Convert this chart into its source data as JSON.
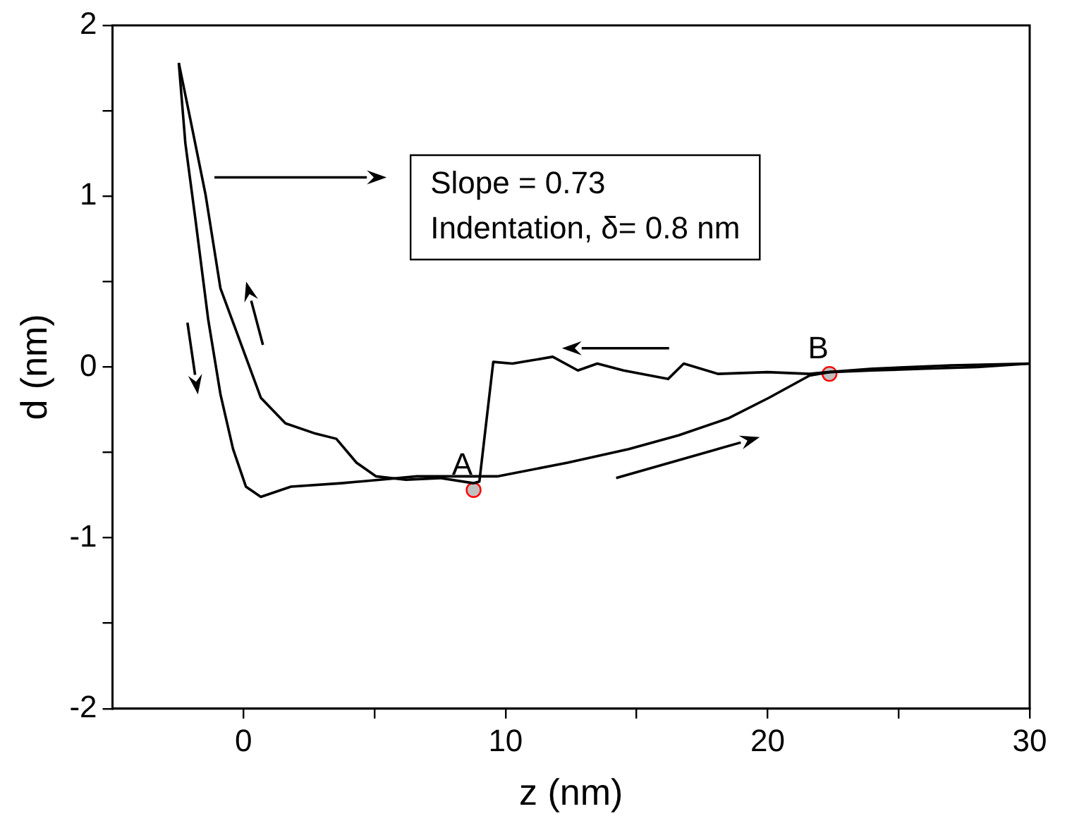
{
  "chart_data": {
    "type": "line",
    "xlabel": "z (nm)",
    "ylabel": "d (nm)",
    "xlim": [
      -5,
      30
    ],
    "xticks": [
      0,
      {
        "value": 5,
        "label": null
      },
      10,
      {
        "value": 15,
        "label": null
      },
      20,
      {
        "value": 25,
        "label": null
      },
      30
    ],
    "ylim": [
      -2,
      2
    ],
    "yticks": [
      -2,
      {
        "value": -1.5,
        "label": null
      },
      -1,
      {
        "value": -0.5,
        "label": null
      },
      0,
      {
        "value": 0.5,
        "label": null
      },
      1,
      {
        "value": 1.5,
        "label": null
      },
      2
    ],
    "grid": false,
    "legend": false,
    "marker": "none",
    "line_style": "solid",
    "series": [
      {
        "color": "#000000",
        "x": [
          30,
          27,
          24,
          22.3,
          21.6,
          20,
          18.1,
          16.8,
          16.2,
          14.5,
          13.5,
          12.76,
          11.8,
          10.26,
          9.53,
          9.0,
          8.78,
          7.5,
          6.2,
          5.06,
          4.31,
          3.54,
          2.75,
          1.6,
          0.66,
          -0.3,
          -0.88,
          -1.45,
          -2.03,
          -2.47
        ],
        "values": [
          0.02,
          0.01,
          -0.01,
          -0.03,
          -0.04,
          -0.03,
          -0.04,
          0.02,
          -0.07,
          -0.02,
          0.02,
          -0.02,
          0.06,
          0.02,
          0.03,
          -0.67,
          -0.68,
          -0.65,
          -0.66,
          -0.64,
          -0.56,
          -0.42,
          -0.39,
          -0.33,
          -0.18,
          0.22,
          0.46,
          1.01,
          1.45,
          1.78
        ]
      },
      {
        "color": "#000000",
        "x": [
          -2.47,
          -2.22,
          -1.84,
          -1.35,
          -0.88,
          -0.4,
          0.09,
          0.66,
          1.81,
          3.73,
          5.2,
          6.61,
          8.9,
          9.68,
          12.37,
          14.7,
          16.6,
          18.5,
          20.05,
          21.6,
          22.36,
          24,
          26,
          28,
          30
        ],
        "values": [
          1.78,
          1.31,
          0.87,
          0.28,
          -0.16,
          -0.48,
          -0.7,
          -0.76,
          -0.7,
          -0.68,
          -0.66,
          -0.64,
          -0.64,
          -0.64,
          -0.56,
          -0.48,
          -0.4,
          -0.3,
          -0.18,
          -0.05,
          -0.03,
          -0.02,
          -0.01,
          0.0,
          0.02
        ]
      },
      {
        "type": "scatter",
        "marker": "circle",
        "color": "#ff0000",
        "x": [
          8.78,
          22.36
        ],
        "values": [
          -0.72,
          -0.04
        ]
      }
    ],
    "annotations": [
      {
        "text": "A",
        "x": 8.78,
        "y": -0.72
      },
      {
        "text": "B",
        "x": 22.36,
        "y": -0.04
      },
      "Slope = 0.73",
      "Indentation, δ= 0.8 nm"
    ]
  }
}
